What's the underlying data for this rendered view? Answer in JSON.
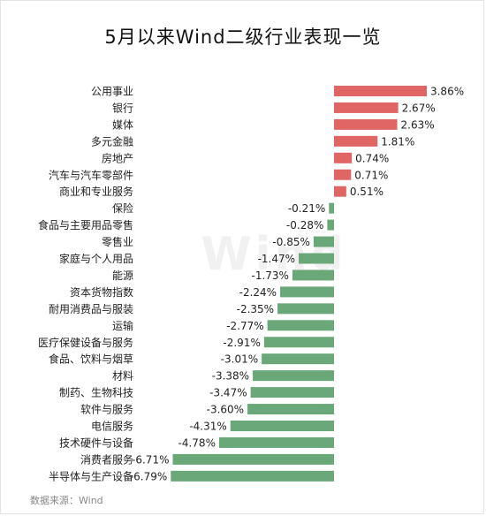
{
  "title": "5月以来Wind二级行业表现一览",
  "watermark": "Wind",
  "source": "数据来源：Wind",
  "colors": {
    "positive": "#e06666",
    "negative": "#6aa779",
    "text": "#222222"
  },
  "chart_data": {
    "type": "bar",
    "orientation": "horizontal",
    "title": "5月以来Wind二级行业表现一览",
    "unit": "%",
    "categories": [
      "公用事业",
      "银行",
      "媒体",
      "多元金融",
      "房地产",
      "汽车与汽车零部件",
      "商业和专业服务",
      "保险",
      "食品与主要用品零售",
      "零售业",
      "家庭与个人用品",
      "能源",
      "资本货物指数",
      "耐用消费品与服装",
      "运输",
      "医疗保健设备与服务",
      "食品、饮料与烟草",
      "材料",
      "制药、生物科技",
      "软件与服务",
      "电信服务",
      "技术硬件与设备",
      "消费者服务",
      "半导体与生产设备"
    ],
    "values": [
      3.86,
      2.67,
      2.63,
      1.81,
      0.74,
      0.71,
      0.51,
      -0.21,
      -0.28,
      -0.85,
      -1.47,
      -1.73,
      -2.24,
      -2.35,
      -2.77,
      -2.91,
      -3.01,
      -3.38,
      -3.47,
      -3.6,
      -4.31,
      -4.78,
      -6.71,
      -6.79
    ],
    "labels": [
      "3.86%",
      "2.67%",
      "2.63%",
      "1.81%",
      "0.74%",
      "0.71%",
      "0.51%",
      "-0.21%",
      "-0.28%",
      "-0.85%",
      "-1.47%",
      "-1.73%",
      "-2.24%",
      "-2.35%",
      "-2.77%",
      "-2.91%",
      "-3.01%",
      "-3.38%",
      "-3.47%",
      "-3.60%",
      "-4.31%",
      "-4.78%",
      "-6.71%",
      "-6.79%"
    ],
    "grid": false,
    "legend": false
  }
}
